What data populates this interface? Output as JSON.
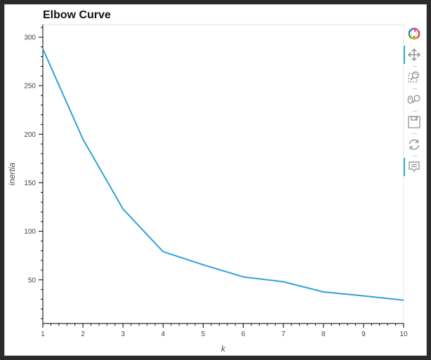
{
  "chart_data": {
    "type": "line",
    "title": "Elbow Curve",
    "xlabel": "k",
    "ylabel": "inertia",
    "x": [
      1,
      2,
      3,
      4,
      5,
      6,
      7,
      8,
      9,
      10
    ],
    "series": [
      {
        "values": [
          288,
          195,
          123,
          79,
          65.5,
          53,
          48,
          37.5,
          33.5,
          29
        ]
      }
    ],
    "xlim": [
      1,
      10
    ],
    "ylim": [
      5,
      313
    ],
    "xticks": [
      1,
      2,
      3,
      4,
      5,
      6,
      7,
      8,
      9,
      10
    ],
    "yticks": [
      50,
      100,
      150,
      200,
      250,
      300
    ],
    "grid": false,
    "line_color": "#30a2da"
  },
  "toolbar": {
    "tools": [
      {
        "icon": "bokeh-logo-icon",
        "active": false
      },
      {
        "icon": "pan-icon",
        "active": true
      },
      {
        "icon": "box-zoom-icon",
        "active": false
      },
      {
        "icon": "wheel-zoom-icon",
        "active": false
      },
      {
        "icon": "save-icon",
        "active": false
      },
      {
        "icon": "reset-icon",
        "active": false
      },
      {
        "icon": "hover-icon",
        "active": true
      }
    ]
  }
}
